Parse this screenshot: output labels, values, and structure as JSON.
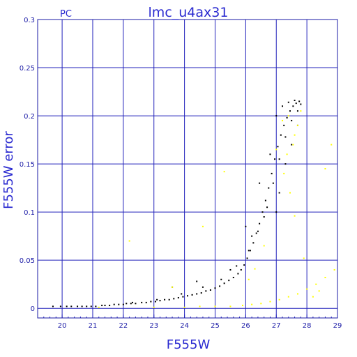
{
  "chart_data": {
    "type": "scatter",
    "title": "lmc_u4ax31",
    "corner_label": "PC",
    "xlabel": "F555W",
    "ylabel": "F555W error",
    "xlim": [
      19.2,
      29.0
    ],
    "ylim": [
      -0.01,
      0.3
    ],
    "x_ticks": [
      20,
      21,
      22,
      23,
      24,
      25,
      26,
      27,
      28,
      29
    ],
    "y_ticks": [
      0,
      0.05,
      0.1,
      0.15,
      0.2,
      0.25,
      0.3
    ],
    "y_tick_labels": [
      "0",
      "0.05",
      "0.1",
      "0.15",
      "0.2",
      "0.25",
      "0.3"
    ],
    "grid": true,
    "colors": {
      "axis": "#1a1aa6",
      "grid": "#2222bb",
      "series_black": "#000000",
      "series_yellow": "#ffff00"
    },
    "series": [
      {
        "color": "#000000",
        "points": [
          [
            19.7,
            0.002
          ],
          [
            19.95,
            0.002
          ],
          [
            20.15,
            0.002
          ],
          [
            20.3,
            0.002
          ],
          [
            20.5,
            0.002
          ],
          [
            20.65,
            0.002
          ],
          [
            20.8,
            0.002
          ],
          [
            20.95,
            0.002
          ],
          [
            21.1,
            0.002
          ],
          [
            21.3,
            0.003
          ],
          [
            21.4,
            0.003
          ],
          [
            21.55,
            0.003
          ],
          [
            21.7,
            0.004
          ],
          [
            21.85,
            0.004
          ],
          [
            22.0,
            0.004
          ],
          [
            22.1,
            0.005
          ],
          [
            22.25,
            0.005
          ],
          [
            22.4,
            0.005
          ],
          [
            22.6,
            0.006
          ],
          [
            22.75,
            0.006
          ],
          [
            22.9,
            0.007
          ],
          [
            23.05,
            0.007
          ],
          [
            23.2,
            0.008
          ],
          [
            23.35,
            0.009
          ],
          [
            23.5,
            0.009
          ],
          [
            23.65,
            0.01
          ],
          [
            23.8,
            0.011
          ],
          [
            23.95,
            0.012
          ],
          [
            24.1,
            0.013
          ],
          [
            24.25,
            0.014
          ],
          [
            24.4,
            0.015
          ],
          [
            24.55,
            0.016
          ],
          [
            24.7,
            0.018
          ],
          [
            24.85,
            0.019
          ],
          [
            25.0,
            0.021
          ],
          [
            25.15,
            0.023
          ],
          [
            25.3,
            0.026
          ],
          [
            25.45,
            0.029
          ],
          [
            25.6,
            0.032
          ],
          [
            25.75,
            0.036
          ],
          [
            25.85,
            0.04
          ],
          [
            25.95,
            0.045
          ],
          [
            26.05,
            0.052
          ],
          [
            26.15,
            0.06
          ],
          [
            26.25,
            0.068
          ],
          [
            26.35,
            0.078
          ],
          [
            26.45,
            0.088
          ],
          [
            26.55,
            0.1
          ],
          [
            26.65,
            0.112
          ],
          [
            26.75,
            0.125
          ],
          [
            26.85,
            0.14
          ],
          [
            26.95,
            0.155
          ],
          [
            27.05,
            0.168
          ],
          [
            27.15,
            0.18
          ],
          [
            27.25,
            0.19
          ],
          [
            27.35,
            0.198
          ],
          [
            27.45,
            0.205
          ],
          [
            27.55,
            0.21
          ],
          [
            27.65,
            0.213
          ],
          [
            27.75,
            0.215
          ],
          [
            22.3,
            0.006
          ],
          [
            23.1,
            0.009
          ],
          [
            23.9,
            0.015
          ],
          [
            24.6,
            0.022
          ],
          [
            25.2,
            0.03
          ],
          [
            25.7,
            0.044
          ],
          [
            26.1,
            0.06
          ],
          [
            26.4,
            0.08
          ],
          [
            26.7,
            0.105
          ],
          [
            26.9,
            0.13
          ],
          [
            27.1,
            0.155
          ],
          [
            27.3,
            0.178
          ],
          [
            27.5,
            0.195
          ],
          [
            27.7,
            0.205
          ],
          [
            23.6,
            0.022
          ],
          [
            24.4,
            0.028
          ],
          [
            25.5,
            0.04
          ],
          [
            26.2,
            0.075
          ],
          [
            26.6,
            0.095
          ],
          [
            26.0,
            0.085
          ],
          [
            26.45,
            0.13
          ],
          [
            26.8,
            0.16
          ],
          [
            27.0,
            0.2
          ],
          [
            27.2,
            0.21
          ],
          [
            27.4,
            0.214
          ],
          [
            27.6,
            0.216
          ],
          [
            27.8,
            0.212
          ],
          [
            27.3,
            0.15
          ],
          [
            27.5,
            0.17
          ],
          [
            27.7,
            0.19
          ],
          [
            27.1,
            0.12
          ],
          [
            27.0,
            0.1
          ]
        ]
      },
      {
        "color": "#ffff00",
        "points": [
          [
            21.2,
            0.001
          ],
          [
            22.2,
            0.07
          ],
          [
            23.6,
            0.022
          ],
          [
            24.6,
            0.085
          ],
          [
            25.3,
            0.142
          ],
          [
            25.5,
            0.002
          ],
          [
            25.9,
            0.003
          ],
          [
            26.2,
            0.004
          ],
          [
            26.5,
            0.005
          ],
          [
            26.8,
            0.007
          ],
          [
            27.1,
            0.009
          ],
          [
            27.4,
            0.012
          ],
          [
            27.7,
            0.015
          ],
          [
            28.0,
            0.02
          ],
          [
            28.3,
            0.025
          ],
          [
            28.6,
            0.032
          ],
          [
            28.9,
            0.04
          ],
          [
            27.9,
            0.052
          ],
          [
            28.6,
            0.145
          ],
          [
            28.8,
            0.17
          ],
          [
            26.1,
            0.03
          ],
          [
            26.6,
            0.065
          ],
          [
            27.6,
            0.096
          ],
          [
            27.2,
            0.195
          ],
          [
            27.4,
            0.2
          ],
          [
            27.6,
            0.18
          ],
          [
            27.35,
            0.16
          ],
          [
            27.55,
            0.17
          ],
          [
            27.8,
            0.205
          ],
          [
            27.45,
            0.12
          ],
          [
            23.0,
            0.001
          ],
          [
            24.0,
            0.001
          ],
          [
            24.5,
            0.002
          ],
          [
            25.0,
            0.002
          ],
          [
            26.3,
            0.041
          ],
          [
            27.0,
            0.165
          ],
          [
            27.25,
            0.14
          ],
          [
            27.7,
            0.19
          ],
          [
            28.2,
            0.012
          ],
          [
            28.4,
            0.018
          ]
        ]
      }
    ]
  }
}
